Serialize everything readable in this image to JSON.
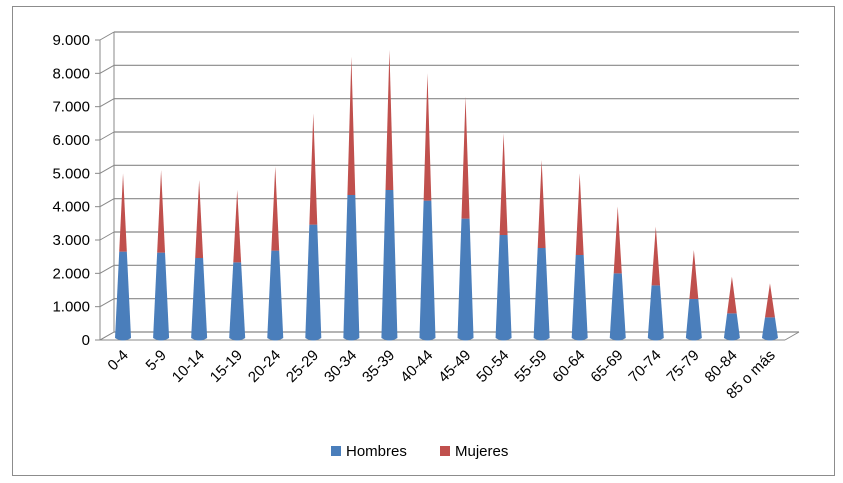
{
  "chart_data": {
    "type": "bar",
    "stacked": true,
    "shape": "cone",
    "categories": [
      "0-4",
      "5-9",
      "10-14",
      "15-19",
      "20-24",
      "25-29",
      "30-34",
      "35-39",
      "40-44",
      "45-49",
      "50-54",
      "55-59",
      "60-64",
      "65-69",
      "70-74",
      "75-79",
      "80-84",
      "85 o más"
    ],
    "series": [
      {
        "name": "Hombres",
        "color": "#4a7ebb",
        "values": [
          2650,
          2620,
          2460,
          2330,
          2680,
          3460,
          4350,
          4500,
          4180,
          3640,
          3150,
          2760,
          2550,
          2000,
          1640,
          1230,
          800,
          680
        ]
      },
      {
        "name": "Mujeres",
        "color": "#c0504d",
        "values": [
          2350,
          2480,
          2340,
          2170,
          2520,
          3340,
          4150,
          4200,
          3820,
          3660,
          3050,
          2640,
          2450,
          2000,
          1760,
          1470,
          1100,
          1020
        ]
      }
    ],
    "yticks": [
      "0",
      "1.000",
      "2.000",
      "3.000",
      "4.000",
      "5.000",
      "6.000",
      "7.000",
      "8.000",
      "9.000"
    ],
    "ylim": [
      0,
      9000
    ],
    "grid": true,
    "legend_position": "bottom"
  }
}
